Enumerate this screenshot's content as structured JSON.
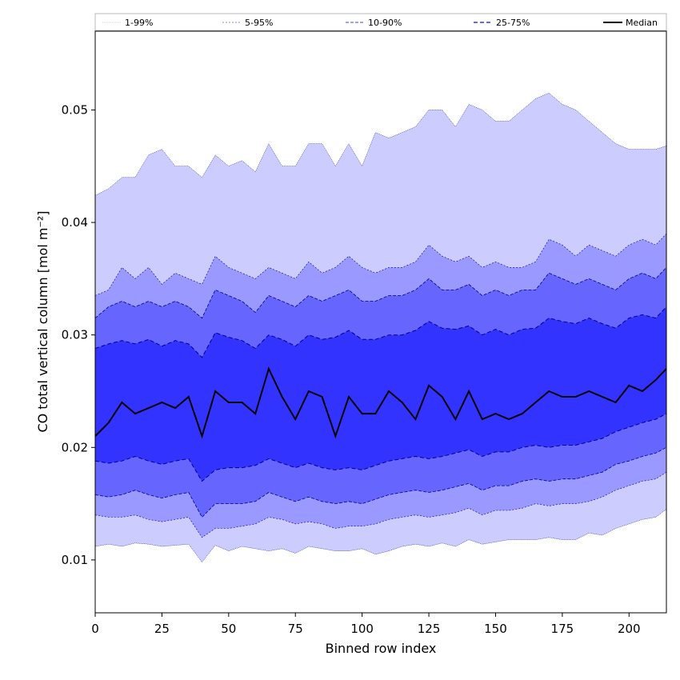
{
  "chart_data": {
    "type": "area",
    "title": "",
    "xlabel": "Binned row index",
    "ylabel": "CO total vertical column [mol m⁻²]",
    "xlim": [
      0,
      214
    ],
    "ylim": [
      0.0053,
      0.057
    ],
    "xticks": [
      0,
      25,
      50,
      75,
      100,
      125,
      150,
      175,
      200
    ],
    "yticks": [
      0.01,
      0.02,
      0.03,
      0.04,
      0.05
    ],
    "ytick_labels": [
      "0.01",
      "0.02",
      "0.03",
      "0.04",
      "0.05"
    ],
    "grid": false,
    "legend_position": "top",
    "series_style": {
      "band_colors": [
        "#ccccff",
        "#9999ff",
        "#6666ff",
        "#3333ff"
      ],
      "edge_color": "#00008b",
      "median_color": "#000000"
    },
    "legend": [
      {
        "label": "1-99%"
      },
      {
        "label": "5-95%"
      },
      {
        "label": "10-90%"
      },
      {
        "label": "25-75%"
      },
      {
        "label": "Median"
      }
    ],
    "x": [
      0,
      5,
      10,
      15,
      20,
      25,
      30,
      35,
      40,
      45,
      50,
      55,
      60,
      65,
      70,
      75,
      80,
      85,
      90,
      95,
      100,
      105,
      110,
      115,
      120,
      125,
      130,
      135,
      140,
      145,
      150,
      155,
      160,
      165,
      170,
      175,
      180,
      185,
      190,
      195,
      200,
      205,
      210,
      214
    ],
    "series": [
      {
        "name": "1-99%",
        "upper": [
          0.0424,
          0.043,
          0.044,
          0.044,
          0.046,
          0.0465,
          0.045,
          0.045,
          0.044,
          0.046,
          0.045,
          0.0455,
          0.0445,
          0.047,
          0.045,
          0.045,
          0.047,
          0.047,
          0.045,
          0.047,
          0.045,
          0.048,
          0.0475,
          0.048,
          0.0485,
          0.05,
          0.05,
          0.0485,
          0.0505,
          0.05,
          0.049,
          0.049,
          0.05,
          0.051,
          0.0515,
          0.0505,
          0.05,
          0.049,
          0.048,
          0.047,
          0.0465,
          0.0465,
          0.0465,
          0.0468
        ],
        "lower": [
          0.0112,
          0.0114,
          0.0112,
          0.0115,
          0.0114,
          0.0112,
          0.0113,
          0.0114,
          0.0098,
          0.0113,
          0.0108,
          0.0112,
          0.011,
          0.0108,
          0.011,
          0.0106,
          0.0112,
          0.011,
          0.0108,
          0.0108,
          0.011,
          0.0105,
          0.0108,
          0.0112,
          0.0114,
          0.0112,
          0.0115,
          0.0112,
          0.0118,
          0.0114,
          0.0116,
          0.0118,
          0.0118,
          0.0118,
          0.012,
          0.0118,
          0.0118,
          0.0124,
          0.0122,
          0.0128,
          0.0132,
          0.0136,
          0.0138,
          0.0145
        ]
      },
      {
        "name": "5-95%",
        "upper": [
          0.0335,
          0.034,
          0.036,
          0.035,
          0.036,
          0.0345,
          0.0355,
          0.035,
          0.0345,
          0.037,
          0.036,
          0.0355,
          0.035,
          0.036,
          0.0355,
          0.035,
          0.0365,
          0.0355,
          0.036,
          0.037,
          0.036,
          0.0355,
          0.036,
          0.036,
          0.0365,
          0.038,
          0.037,
          0.0365,
          0.037,
          0.036,
          0.0365,
          0.036,
          0.036,
          0.0365,
          0.0385,
          0.038,
          0.037,
          0.038,
          0.0375,
          0.037,
          0.038,
          0.0385,
          0.038,
          0.039
        ],
        "lower": [
          0.014,
          0.0138,
          0.0138,
          0.014,
          0.0136,
          0.0134,
          0.0136,
          0.0138,
          0.012,
          0.0128,
          0.0128,
          0.013,
          0.0132,
          0.0138,
          0.0136,
          0.0132,
          0.0134,
          0.0132,
          0.0128,
          0.013,
          0.013,
          0.0132,
          0.0136,
          0.0138,
          0.014,
          0.0138,
          0.014,
          0.0142,
          0.0146,
          0.014,
          0.0144,
          0.0144,
          0.0146,
          0.015,
          0.0148,
          0.015,
          0.015,
          0.0152,
          0.0156,
          0.0162,
          0.0166,
          0.017,
          0.0172,
          0.0178
        ]
      },
      {
        "name": "10-90%",
        "upper": [
          0.0315,
          0.0325,
          0.033,
          0.0325,
          0.033,
          0.0325,
          0.033,
          0.0325,
          0.0315,
          0.034,
          0.0335,
          0.033,
          0.032,
          0.0335,
          0.033,
          0.0325,
          0.0335,
          0.033,
          0.0335,
          0.034,
          0.033,
          0.033,
          0.0335,
          0.0335,
          0.034,
          0.035,
          0.034,
          0.034,
          0.0345,
          0.0335,
          0.034,
          0.0335,
          0.034,
          0.034,
          0.0355,
          0.035,
          0.0345,
          0.035,
          0.0345,
          0.034,
          0.035,
          0.0355,
          0.035,
          0.036
        ],
        "lower": [
          0.0158,
          0.0156,
          0.0158,
          0.0162,
          0.0158,
          0.0155,
          0.0158,
          0.016,
          0.0138,
          0.015,
          0.015,
          0.015,
          0.0152,
          0.016,
          0.0156,
          0.0152,
          0.0156,
          0.0152,
          0.015,
          0.0152,
          0.015,
          0.0154,
          0.0158,
          0.016,
          0.0162,
          0.016,
          0.0162,
          0.0165,
          0.0168,
          0.0162,
          0.0166,
          0.0166,
          0.017,
          0.0172,
          0.017,
          0.0172,
          0.0172,
          0.0175,
          0.0178,
          0.0185,
          0.0188,
          0.0192,
          0.0195,
          0.02
        ]
      },
      {
        "name": "25-75%",
        "upper": [
          0.0288,
          0.0292,
          0.0295,
          0.0292,
          0.0296,
          0.029,
          0.0295,
          0.0292,
          0.028,
          0.0302,
          0.0298,
          0.0295,
          0.0288,
          0.03,
          0.0296,
          0.029,
          0.03,
          0.0296,
          0.0298,
          0.0304,
          0.0296,
          0.0296,
          0.03,
          0.03,
          0.0304,
          0.0312,
          0.0306,
          0.0305,
          0.0308,
          0.03,
          0.0305,
          0.03,
          0.0305,
          0.0306,
          0.0315,
          0.0312,
          0.031,
          0.0315,
          0.031,
          0.0306,
          0.0315,
          0.0318,
          0.0315,
          0.0325
        ],
        "lower": [
          0.0188,
          0.0186,
          0.0188,
          0.0192,
          0.0188,
          0.0185,
          0.0188,
          0.019,
          0.017,
          0.018,
          0.0182,
          0.0182,
          0.0184,
          0.019,
          0.0186,
          0.0182,
          0.0186,
          0.0182,
          0.018,
          0.0182,
          0.018,
          0.0184,
          0.0188,
          0.019,
          0.0192,
          0.019,
          0.0192,
          0.0195,
          0.0198,
          0.0192,
          0.0196,
          0.0196,
          0.02,
          0.0202,
          0.02,
          0.0202,
          0.0202,
          0.0205,
          0.0208,
          0.0214,
          0.0218,
          0.0222,
          0.0225,
          0.023
        ]
      },
      {
        "name": "Median",
        "values": [
          0.021,
          0.0222,
          0.024,
          0.023,
          0.0235,
          0.024,
          0.0235,
          0.0245,
          0.021,
          0.025,
          0.024,
          0.024,
          0.023,
          0.027,
          0.0245,
          0.0225,
          0.025,
          0.0245,
          0.021,
          0.0245,
          0.023,
          0.023,
          0.025,
          0.024,
          0.0225,
          0.0255,
          0.0245,
          0.0225,
          0.025,
          0.0225,
          0.023,
          0.0225,
          0.023,
          0.024,
          0.025,
          0.0245,
          0.0245,
          0.025,
          0.0245,
          0.024,
          0.0255,
          0.025,
          0.026,
          0.027
        ]
      }
    ]
  }
}
